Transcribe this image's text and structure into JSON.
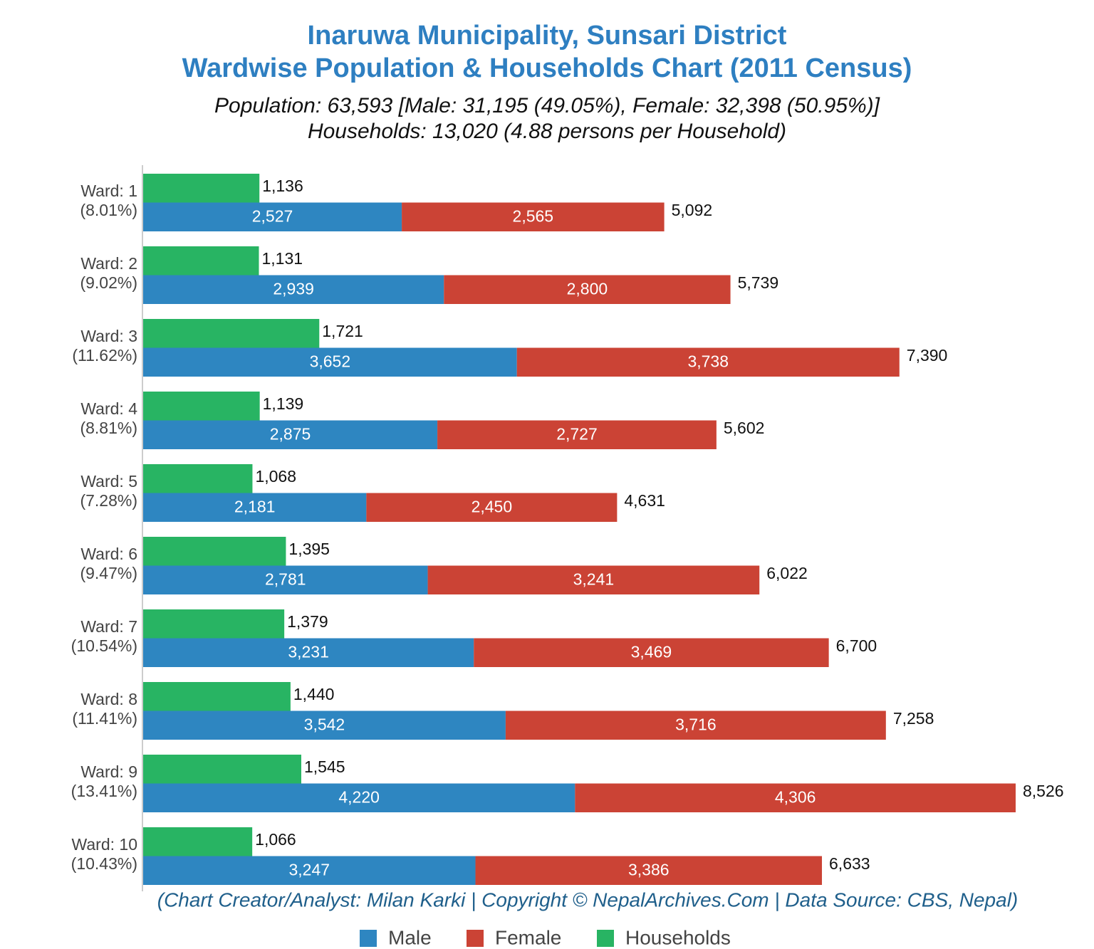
{
  "chart_data": {
    "type": "bar",
    "orientation": "horizontal",
    "title": [
      "Inaruwa Municipality, Sunsari District",
      "Wardwise Population & Households Chart (2011 Census)"
    ],
    "subtitle": [
      "Population: 63,593 [Male: 31,195 (49.05%), Female: 32,398 (50.95%)]",
      "Households: 13,020 (4.88 persons per Household)"
    ],
    "footer": "(Chart Creator/Analyst: Milan Karki | Copyright © NepalArchives.Com | Data Source: CBS, Nepal)",
    "categories": [
      "Ward: 1",
      "Ward: 2",
      "Ward: 3",
      "Ward: 4",
      "Ward: 5",
      "Ward: 6",
      "Ward: 7",
      "Ward: 8",
      "Ward: 9",
      "Ward: 10"
    ],
    "category_shares": [
      "(8.01%)",
      "(9.02%)",
      "(11.62%)",
      "(8.81%)",
      "(7.28%)",
      "(9.47%)",
      "(10.54%)",
      "(11.41%)",
      "(13.41%)",
      "(10.43%)"
    ],
    "series": [
      {
        "name": "Male",
        "color": "#2e86c1",
        "stack": "population",
        "values": [
          2527,
          2939,
          3652,
          2875,
          2181,
          2781,
          3231,
          3542,
          4220,
          3247
        ],
        "value_labels": [
          "2,527",
          "2,939",
          "3,652",
          "2,875",
          "2,181",
          "2,781",
          "3,231",
          "3,542",
          "4,220",
          "3,247"
        ]
      },
      {
        "name": "Female",
        "color": "#cb4335",
        "stack": "population",
        "values": [
          2565,
          2800,
          3738,
          2727,
          2450,
          3241,
          3469,
          3716,
          4306,
          3386
        ],
        "value_labels": [
          "2,565",
          "2,800",
          "3,738",
          "2,727",
          "2,450",
          "3,241",
          "3,469",
          "3,716",
          "4,306",
          "3,386"
        ]
      },
      {
        "name": "Households",
        "color": "#28b463",
        "stack": "households",
        "values": [
          1136,
          1131,
          1721,
          1139,
          1068,
          1395,
          1379,
          1440,
          1545,
          1066
        ],
        "value_labels": [
          "1,136",
          "1,131",
          "1,721",
          "1,139",
          "1,068",
          "1,395",
          "1,379",
          "1,440",
          "1,545",
          "1,066"
        ]
      }
    ],
    "totals": [
      5092,
      5739,
      7390,
      5602,
      4631,
      6022,
      6700,
      7258,
      8526,
      6633
    ],
    "total_labels": [
      "5,092",
      "5,739",
      "7,390",
      "5,602",
      "4,631",
      "6,022",
      "6,700",
      "7,258",
      "8,526",
      "6,633"
    ],
    "legend": "bottom"
  }
}
